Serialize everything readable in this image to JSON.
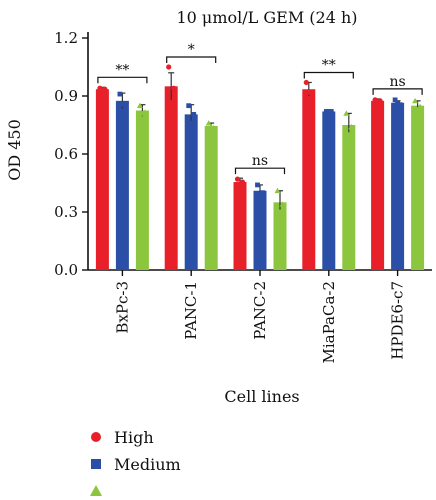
{
  "chart_data": {
    "type": "bar",
    "title": "10 μmol/L GEM (24 h)",
    "xlabel": "Cell lines",
    "ylabel": "OD 450",
    "ylim": [
      0,
      1.2
    ],
    "yticks": [
      "0.0",
      "0.3",
      "0.6",
      "0.9",
      "1.2"
    ],
    "categories": [
      "BxPc-3",
      "PANC-1",
      "PANC-2",
      "MiaPaCa-2",
      "HPDE6-c7"
    ],
    "series": [
      {
        "name": "High",
        "color": "#e8202a",
        "marker": "circle",
        "values": [
          0.935,
          0.95,
          0.455,
          0.935,
          0.875
        ],
        "errors": [
          0.01,
          0.07,
          0.02,
          0.035,
          0.01
        ],
        "points": [
          [
            0.94,
            0.93,
            0.935
          ],
          [
            1.05,
            0.86,
            0.94
          ],
          [
            0.47,
            0.44,
            0.455
          ],
          [
            0.97,
            0.92,
            0.915
          ],
          [
            0.88,
            0.87,
            0.875
          ]
        ]
      },
      {
        "name": "Medium",
        "color": "#2b4fa6",
        "marker": "square",
        "values": [
          0.875,
          0.805,
          0.41,
          0.82,
          0.865
        ],
        "errors": [
          0.04,
          0.05,
          0.03,
          0.005,
          0.01
        ],
        "points": [
          [
            0.91,
            0.86,
            0.855
          ],
          [
            0.85,
            0.76,
            0.805
          ],
          [
            0.44,
            0.39,
            0.4
          ],
          [
            0.82,
            0.82,
            0.82
          ],
          [
            0.88,
            0.86,
            0.855
          ]
        ]
      },
      {
        "name": "",
        "color": "#8cc63f",
        "marker": "triangle",
        "values": [
          0.825,
          0.745,
          0.35,
          0.75,
          0.85
        ],
        "errors": [
          0.03,
          0.015,
          0.06,
          0.06,
          0.025
        ],
        "points": [
          [
            0.85,
            0.81,
            0.815
          ],
          [
            0.76,
            0.74,
            0.735
          ],
          [
            0.41,
            0.3,
            0.34
          ],
          [
            0.81,
            0.7,
            0.74
          ],
          [
            0.875,
            0.83,
            0.845
          ]
        ]
      }
    ],
    "significance": [
      "**",
      "*",
      "ns",
      "**",
      "ns"
    ],
    "legend_position": "bottom-left"
  }
}
